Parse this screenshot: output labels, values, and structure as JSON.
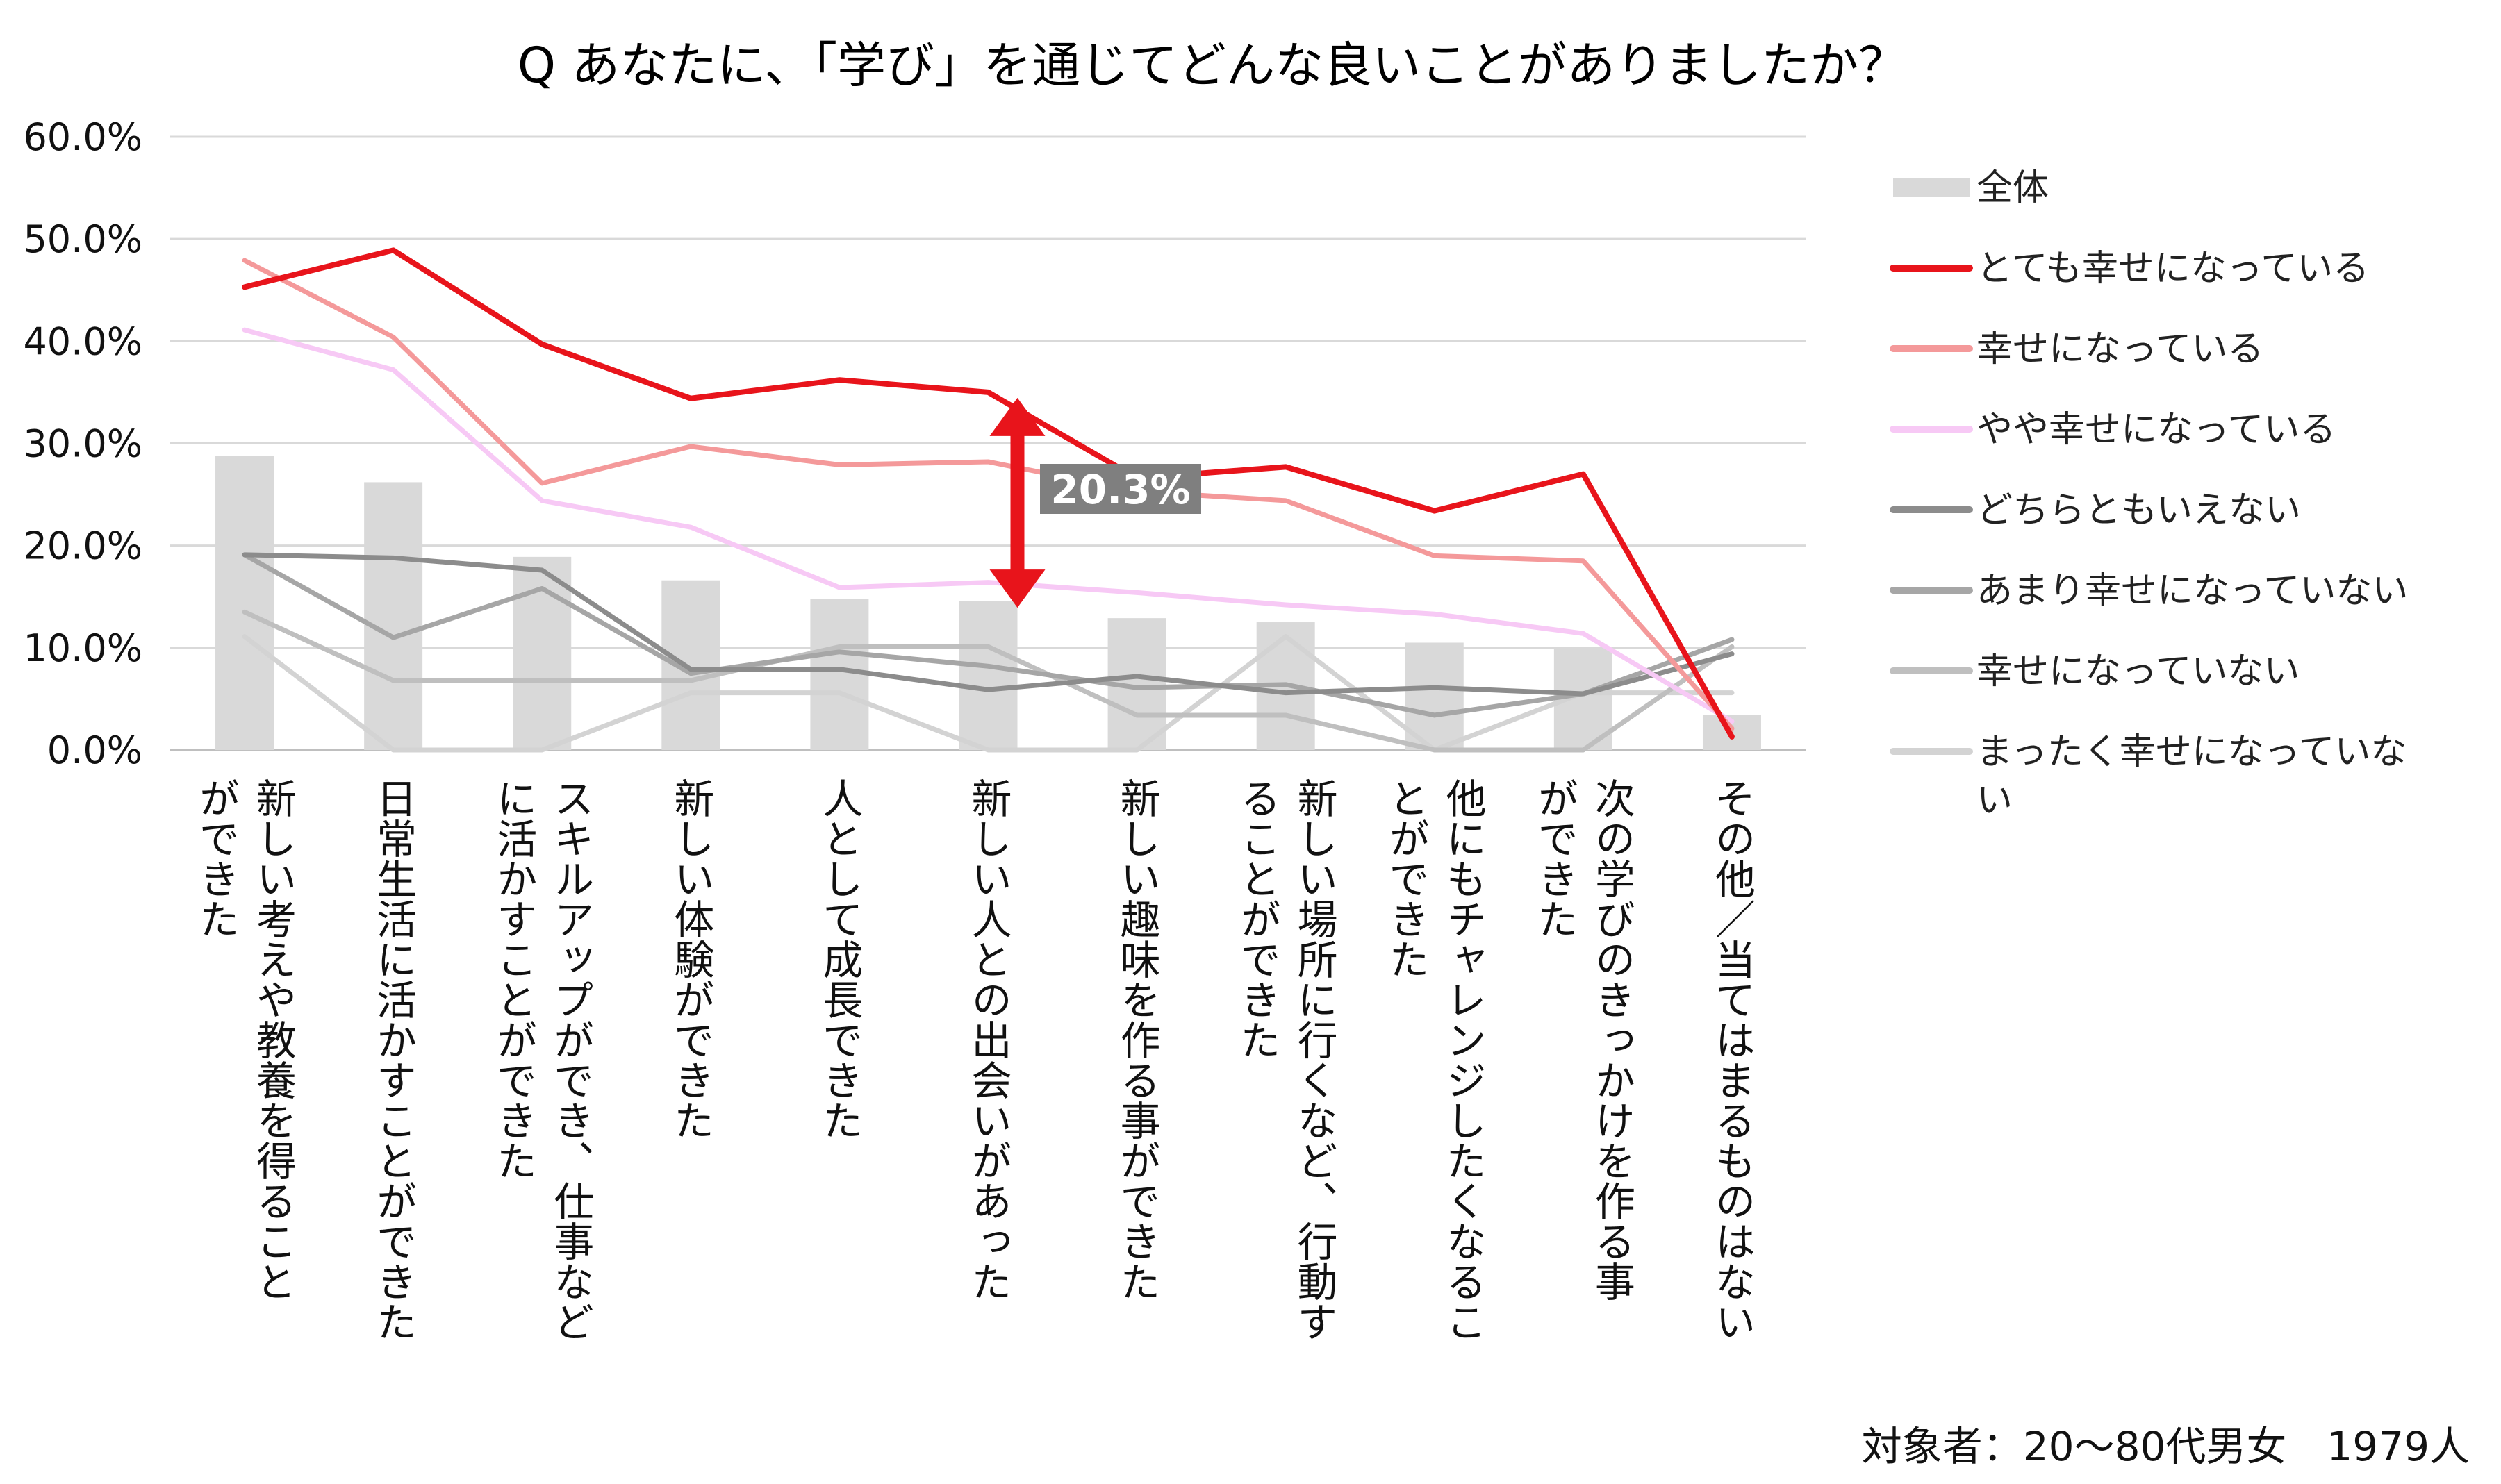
{
  "chart_data": {
    "type": "bar",
    "title": "Q あなたに、「学び」を通じてどんな良いことがありましたか？",
    "yticks": [
      "0.0%",
      "10.0%",
      "20.0%",
      "30.0%",
      "40.0%",
      "50.0%",
      "60.0%"
    ],
    "ylim": [
      0,
      60
    ],
    "grid": true,
    "legend_position": "right",
    "categories": [
      "新しい考えや教養を得ること\nができた",
      "日常生活に活かすことができた",
      "スキルアップができ、仕事など\nに活かすことができた",
      "新しい体験ができた",
      "人として成長できた",
      "新しい人との出会いがあった",
      "新しい趣味を作る事ができた",
      "新しい場所に行くなど、行動す\nることができた",
      "他にもチャレンジしたくなるこ\nとができた",
      "次の学びのきっかけを作る事\nができた",
      "その他／当てはまるものはない"
    ],
    "bar_series": {
      "name": "全体",
      "color": "#d9d9d9",
      "values": [
        28.8,
        26.2,
        18.9,
        16.6,
        14.8,
        14.6,
        12.9,
        12.5,
        10.5,
        10.1,
        3.4
      ]
    },
    "series": [
      {
        "name": "とても幸せになっている",
        "color": "#e8141b",
        "width": 8,
        "values": [
          45.3,
          48.9,
          39.7,
          34.4,
          36.2,
          35.0,
          26.6,
          27.7,
          23.4,
          27.0,
          1.3
        ]
      },
      {
        "name": "幸せになっている",
        "color": "#f4999a",
        "width": 7,
        "values": [
          47.9,
          40.4,
          26.1,
          29.7,
          27.9,
          28.2,
          25.3,
          24.4,
          19.0,
          18.5,
          2.1
        ]
      },
      {
        "name": "やや幸せになっている",
        "color": "#f7c9f5",
        "width": 7,
        "values": [
          41.1,
          37.2,
          24.4,
          21.8,
          15.9,
          16.4,
          15.4,
          14.2,
          13.3,
          11.4,
          2.8
        ]
      },
      {
        "name": "どちらともいえない",
        "color": "#8c8c8c",
        "width": 7,
        "values": [
          19.1,
          18.8,
          17.6,
          7.9,
          7.9,
          5.9,
          7.2,
          5.6,
          6.1,
          5.5,
          9.4
        ]
      },
      {
        "name": "あまり幸せになっていない",
        "color": "#a6a6a6",
        "width": 7,
        "values": [
          19.1,
          11.0,
          15.8,
          7.5,
          9.6,
          8.2,
          6.1,
          6.4,
          3.4,
          5.5,
          10.8
        ]
      },
      {
        "name": "幸せになっていない",
        "color": "#bfbfbf",
        "width": 7,
        "values": [
          13.5,
          6.8,
          6.8,
          6.8,
          10.1,
          10.1,
          3.4,
          3.4,
          0.0,
          0.0,
          10.1
        ]
      },
      {
        "name": "まったく幸せになっていない",
        "color": "#d3d3d3",
        "width": 7,
        "values": [
          11.1,
          0.0,
          0.0,
          5.6,
          5.6,
          0.0,
          0.0,
          11.1,
          0.0,
          5.6,
          5.6
        ]
      }
    ],
    "annotation": {
      "text": "20.3%",
      "category_index": 5,
      "from": 35.0,
      "to": 14.6,
      "color": "#e8141b"
    },
    "note": "対象者：20～80代男女　1979人"
  }
}
